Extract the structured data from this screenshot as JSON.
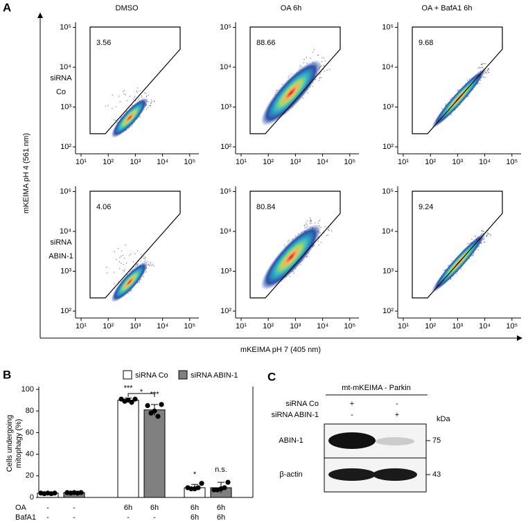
{
  "panel_a": {
    "letter": "A",
    "column_titles": [
      "DMSO",
      "OA 6h",
      "OA + BafA1 6h"
    ],
    "row_labels": [
      [
        "siRNA",
        "Co"
      ],
      [
        "siRNA",
        "ABIN-1"
      ]
    ],
    "gate_values": [
      [
        3.56,
        88.66,
        9.68
      ],
      [
        4.06,
        80.84,
        9.24
      ]
    ],
    "axis_ticks": [
      "10¹",
      "10²",
      "10³",
      "10⁴",
      "10⁵"
    ],
    "y_ticks": [
      "10²",
      "10³",
      "10⁴",
      "10⁵"
    ],
    "y_label": "mKEIMA pH 4 (561 nm)",
    "x_label": "mKEIMA pH 7 (405 nm)"
  },
  "chart_data": {
    "type": "bar",
    "letter": "B",
    "y_label": [
      "Cells undergoing",
      "mitophagy (%)"
    ],
    "categories": [
      null,
      null,
      null
    ],
    "series": [
      {
        "name": "siRNA Co",
        "color": "#ffffff",
        "values": [
          4,
          90,
          9
        ],
        "errors": [
          0.5,
          2,
          3
        ],
        "points": [
          [
            4,
            3.5,
            4,
            3.5,
            4
          ],
          [
            91,
            89,
            90,
            88,
            91
          ],
          [
            9,
            8,
            8,
            9,
            13
          ]
        ]
      },
      {
        "name": "siRNA ABIN-1",
        "color": "#808080",
        "values": [
          4.5,
          81,
          9
        ],
        "errors": [
          0.5,
          5,
          5
        ],
        "points": [
          [
            4.5,
            4,
            4.5,
            4,
            4.5
          ],
          [
            85,
            78,
            80,
            75,
            86
          ],
          [
            7,
            7,
            8,
            9,
            14
          ]
        ]
      }
    ],
    "row_labels": [
      {
        "name": "OA",
        "values": [
          "-",
          "-",
          "6h",
          "6h",
          "6h",
          "6h"
        ]
      },
      {
        "name": "BafA1",
        "values": [
          "-",
          "-",
          "-",
          "-",
          "6h",
          "6h"
        ]
      }
    ],
    "annotations": [
      {
        "text": "***",
        "series": 0,
        "category": 1
      },
      {
        "text": "***",
        "series": 1,
        "category": 1
      },
      {
        "text": "*",
        "series": 0,
        "category": 2
      },
      {
        "text": "n.s.",
        "series": 1,
        "category": 2
      }
    ],
    "bracket_label": "*",
    "ylim": [
      0,
      100
    ],
    "yticks": [
      0,
      20,
      40,
      60,
      80,
      100
    ]
  },
  "panel_c": {
    "letter": "C",
    "header": "mt-mKEIMA - Parkin",
    "conditions": [
      {
        "name": "siRNA Co",
        "values": [
          "+",
          "-"
        ]
      },
      {
        "name": "siRNA ABIN-1",
        "values": [
          "-",
          "+"
        ]
      }
    ],
    "unit": "kDa",
    "bands": [
      {
        "name": "ABIN-1",
        "mw": 75
      },
      {
        "name": "β-actin",
        "mw": 43
      }
    ]
  }
}
